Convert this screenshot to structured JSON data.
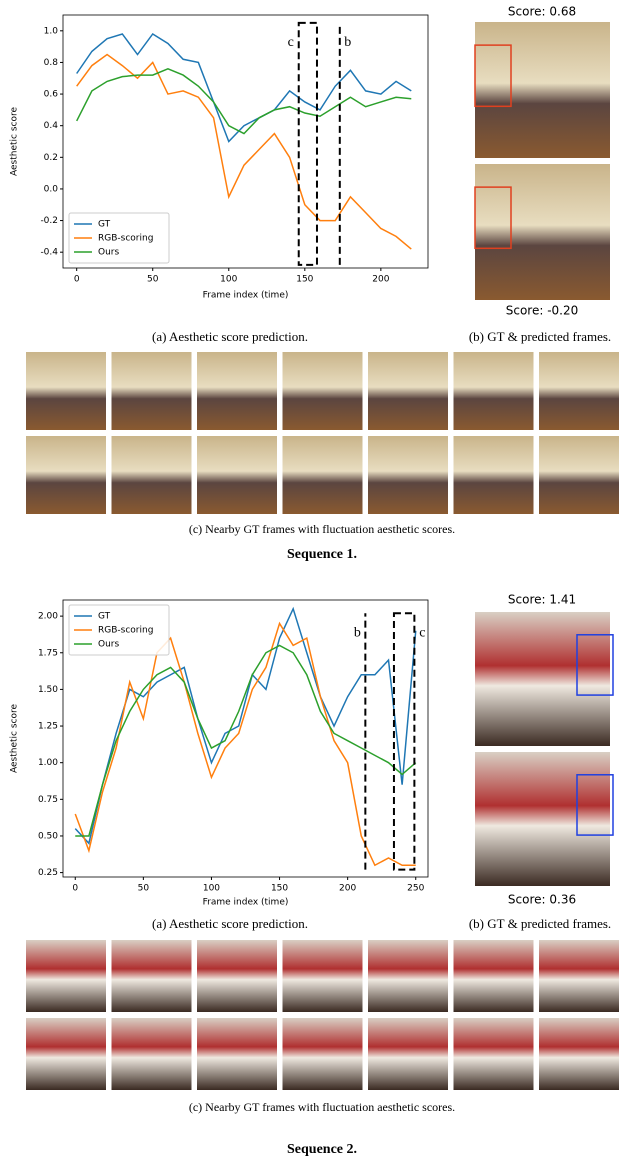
{
  "chart_data": [
    {
      "type": "line",
      "x_label": "Frame index (time)",
      "y_label": "Aesthetic score",
      "x": [
        0,
        10,
        20,
        30,
        40,
        50,
        60,
        70,
        80,
        90,
        100,
        110,
        120,
        130,
        140,
        150,
        160,
        170,
        180,
        190,
        200,
        210,
        220
      ],
      "series": [
        {
          "name": "GT",
          "color": "#1f77b4",
          "values": [
            0.73,
            0.87,
            0.95,
            0.98,
            0.85,
            0.98,
            0.92,
            0.82,
            0.8,
            0.55,
            0.3,
            0.4,
            0.45,
            0.5,
            0.62,
            0.55,
            0.5,
            0.65,
            0.75,
            0.62,
            0.6,
            0.68,
            0.62
          ]
        },
        {
          "name": "RGB-scoring",
          "color": "#ff7f0e",
          "values": [
            0.65,
            0.78,
            0.85,
            0.78,
            0.7,
            0.8,
            0.6,
            0.62,
            0.58,
            0.45,
            -0.05,
            0.15,
            0.25,
            0.35,
            0.2,
            -0.1,
            -0.2,
            -0.2,
            -0.05,
            -0.15,
            -0.25,
            -0.3,
            -0.38
          ]
        },
        {
          "name": "Ours",
          "color": "#2ca02c",
          "values": [
            0.43,
            0.62,
            0.68,
            0.71,
            0.72,
            0.72,
            0.76,
            0.72,
            0.65,
            0.55,
            0.4,
            0.35,
            0.45,
            0.5,
            0.52,
            0.48,
            0.46,
            0.52,
            0.58,
            0.52,
            0.55,
            0.58,
            0.57
          ]
        }
      ],
      "xlim": [
        -9,
        231
      ],
      "ylim": [
        -0.5,
        1.1
      ],
      "xticks": [
        0,
        50,
        100,
        150,
        200
      ],
      "yticks": [
        -0.4,
        -0.2,
        {
          "value": 0,
          "label": "0.0"
        },
        0.2,
        0.4,
        0.6,
        0.8,
        {
          "value": 1,
          "label": "1.0"
        }
      ],
      "legend": "lower left",
      "annotations": [
        {
          "text": "c",
          "x": [
            146,
            158
          ],
          "y": [
            -0.48,
            1.05
          ]
        },
        {
          "text": "b",
          "x": [
            173,
            173
          ],
          "y": [
            -0.48,
            1.05
          ]
        }
      ]
    },
    {
      "type": "line",
      "x_label": "Frame index (time)",
      "y_label": "Aesthetic score",
      "x": [
        0,
        10,
        20,
        30,
        40,
        50,
        60,
        70,
        80,
        90,
        100,
        110,
        120,
        130,
        140,
        150,
        160,
        170,
        180,
        190,
        200,
        210,
        220,
        230,
        240,
        250
      ],
      "series": [
        {
          "name": "GT",
          "color": "#1f77b4",
          "values": [
            0.55,
            0.45,
            0.85,
            1.2,
            1.5,
            1.45,
            1.55,
            1.6,
            1.65,
            1.3,
            1.0,
            1.2,
            1.25,
            1.6,
            1.5,
            1.85,
            2.05,
            1.75,
            1.45,
            1.25,
            1.45,
            1.6,
            1.6,
            1.7,
            0.85,
            1.9
          ]
        },
        {
          "name": "RGB-scoring",
          "color": "#ff7f0e",
          "values": [
            0.65,
            0.4,
            0.8,
            1.1,
            1.55,
            1.3,
            1.75,
            1.85,
            1.55,
            1.2,
            0.9,
            1.1,
            1.2,
            1.5,
            1.65,
            1.95,
            1.8,
            1.85,
            1.45,
            1.15,
            1.0,
            0.5,
            0.3,
            0.35,
            0.3,
            0.3
          ]
        },
        {
          "name": "Ours",
          "color": "#2ca02c",
          "values": [
            0.5,
            0.5,
            0.85,
            1.15,
            1.35,
            1.5,
            1.6,
            1.65,
            1.55,
            1.3,
            1.1,
            1.15,
            1.35,
            1.6,
            1.75,
            1.8,
            1.75,
            1.6,
            1.35,
            1.2,
            1.15,
            1.1,
            1.05,
            1.0,
            0.92,
            1.0
          ]
        }
      ],
      "xlim": [
        -9,
        259
      ],
      "ylim": [
        0.22,
        2.11
      ],
      "xticks": [
        0,
        50,
        100,
        150,
        200,
        250
      ],
      "yticks": [
        0.25,
        {
          "value": 0.5,
          "label": "0.50"
        },
        0.75,
        {
          "value": 1,
          "label": "1.00"
        },
        1.25,
        {
          "value": 1.5,
          "label": "1.50"
        },
        1.75,
        {
          "value": 2,
          "label": "2.00"
        }
      ],
      "legend": "upper left",
      "annotations": [
        {
          "text": "b",
          "x": [
            213,
            213
          ],
          "y": [
            0.27,
            2.02
          ]
        },
        {
          "text": "c",
          "x": [
            234,
            249
          ],
          "y": [
            0.27,
            2.02
          ]
        }
      ]
    }
  ],
  "panels": [
    {
      "score_top": "Score: 0.68",
      "score_bottom": "Score: -0.20",
      "caption_a": "(a) Aesthetic score prediction.",
      "caption_b": "(b) GT & predicted frames.",
      "caption_c": "(c) Nearby GT frames with fluctuation aesthetic scores.",
      "sequence": "Sequence 1."
    },
    {
      "score_top": "Score: 1.41",
      "score_bottom": "Score: 0.36",
      "caption_a": "(a) Aesthetic score prediction.",
      "caption_b": "(b) GT & predicted frames.",
      "caption_c": "(c) Nearby GT frames with fluctuation aesthetic scores.",
      "sequence": "Sequence 2."
    }
  ]
}
